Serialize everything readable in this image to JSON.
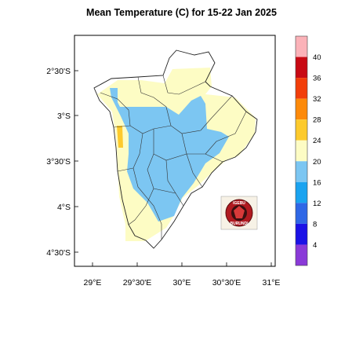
{
  "title": "Mean Temperature (C) for 15-22 Jan 2025",
  "logo": {
    "text_top": "IGEBU",
    "text_bottom": "BURUNDI"
  },
  "map": {
    "x_ticks": [
      "29°E",
      "29°30'E",
      "30°E",
      "30°30'E",
      "31°E"
    ],
    "y_ticks": [
      "2°30'S",
      "3°S",
      "3°30'S",
      "4°S",
      "4°30'S"
    ]
  },
  "colorbar": {
    "labels": [
      "4",
      "8",
      "12",
      "16",
      "20",
      "24",
      "28",
      "32",
      "36",
      "40"
    ],
    "colors": [
      "#8a3ad8",
      "#1b12e6",
      "#2f67e6",
      "#1aa3f0",
      "#7cc6f2",
      "#fdfcc4",
      "#fdca2c",
      "#fd8a0a",
      "#f23e0a",
      "#c80a14",
      "#fbb2b8"
    ]
  },
  "chart_data": {
    "type": "heatmap",
    "title": "Mean Temperature (C) for 15-22 Jan 2025",
    "x_ticks": [
      "29°E",
      "29°30'E",
      "30°E",
      "30°30'E",
      "31°E"
    ],
    "y_ticks": [
      "2°30'S",
      "3°S",
      "3°30'S",
      "4°S",
      "4°30'S"
    ],
    "xlim": [
      28.75,
      31.0
    ],
    "ylim": [
      -4.7,
      -2.25
    ],
    "colorbar_levels": [
      4,
      8,
      12,
      16,
      20,
      24,
      28,
      32,
      36,
      40
    ],
    "regions": [
      {
        "range": "20-24",
        "color": "#fdfcc4"
      },
      {
        "range": "16-20",
        "color": "#7cc6f2"
      },
      {
        "range": "24-28",
        "color": "#fdca2c"
      }
    ]
  }
}
